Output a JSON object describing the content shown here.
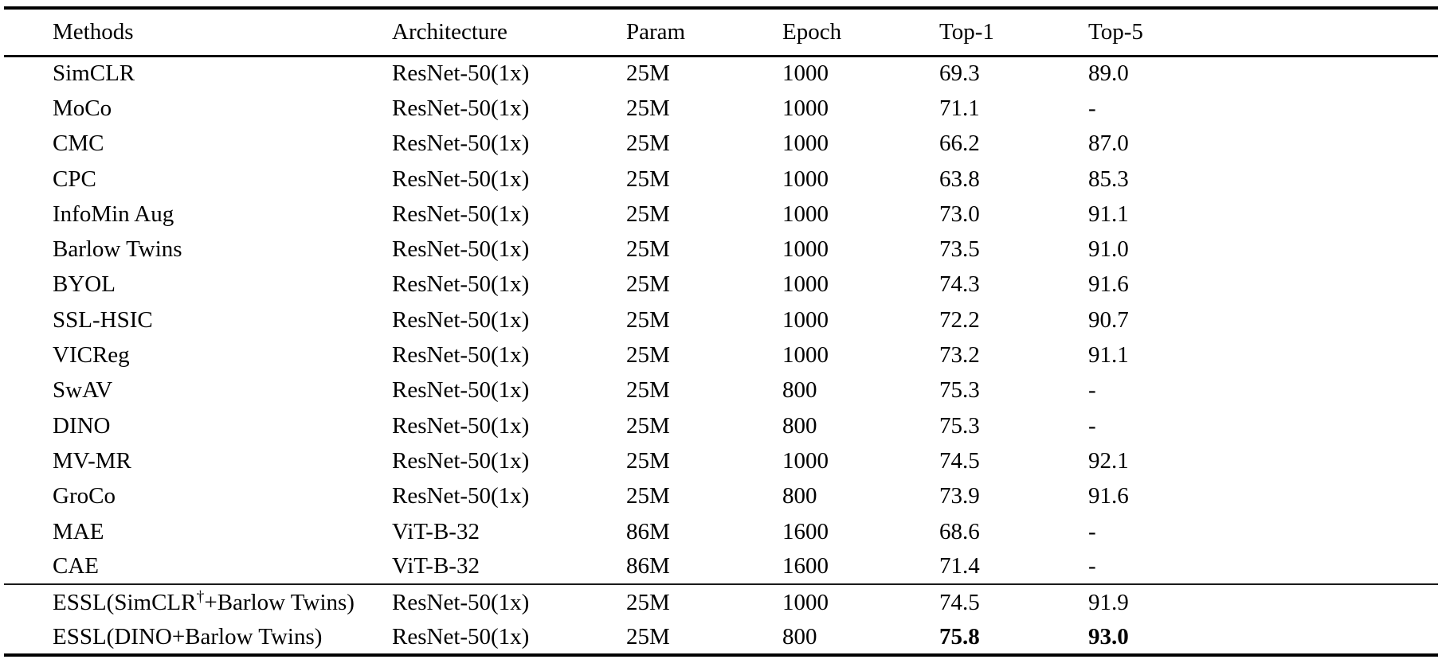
{
  "figure": {
    "kind": "paper-results-table",
    "colors": {
      "text": "#000000",
      "background": "#ffffff",
      "rule": "#000000"
    }
  },
  "table": {
    "columns": [
      {
        "id": "method",
        "label": "Methods"
      },
      {
        "id": "architecture",
        "label": "Architecture"
      },
      {
        "id": "param",
        "label": "Param"
      },
      {
        "id": "epoch",
        "label": "Epoch"
      },
      {
        "id": "top1",
        "label": "Top-1"
      },
      {
        "id": "top5",
        "label": "Top-5"
      }
    ],
    "rows": [
      {
        "method": "SimCLR",
        "architecture": "ResNet-50(1x)",
        "param": "25M",
        "epoch": "1000",
        "top1": "69.3",
        "top5": "89.0",
        "top1_bold": false,
        "top5_bold": false
      },
      {
        "method": "MoCo",
        "architecture": "ResNet-50(1x)",
        "param": "25M",
        "epoch": "1000",
        "top1": "71.1",
        "top5": "-",
        "top1_bold": false,
        "top5_bold": false
      },
      {
        "method": "CMC",
        "architecture": "ResNet-50(1x)",
        "param": "25M",
        "epoch": "1000",
        "top1": "66.2",
        "top5": "87.0",
        "top1_bold": false,
        "top5_bold": false
      },
      {
        "method": "CPC",
        "architecture": "ResNet-50(1x)",
        "param": "25M",
        "epoch": "1000",
        "top1": "63.8",
        "top5": "85.3",
        "top1_bold": false,
        "top5_bold": false
      },
      {
        "method": "InfoMin Aug",
        "architecture": "ResNet-50(1x)",
        "param": "25M",
        "epoch": "1000",
        "top1": "73.0",
        "top5": "91.1",
        "top1_bold": false,
        "top5_bold": false
      },
      {
        "method": "Barlow Twins",
        "architecture": "ResNet-50(1x)",
        "param": "25M",
        "epoch": "1000",
        "top1": "73.5",
        "top5": "91.0",
        "top1_bold": false,
        "top5_bold": false
      },
      {
        "method": "BYOL",
        "architecture": "ResNet-50(1x)",
        "param": "25M",
        "epoch": "1000",
        "top1": "74.3",
        "top5": "91.6",
        "top1_bold": false,
        "top5_bold": false
      },
      {
        "method": "SSL-HSIC",
        "architecture": "ResNet-50(1x)",
        "param": "25M",
        "epoch": "1000",
        "top1": "72.2",
        "top5": "90.7",
        "top1_bold": false,
        "top5_bold": false
      },
      {
        "method": "VICReg",
        "architecture": "ResNet-50(1x)",
        "param": "25M",
        "epoch": "1000",
        "top1": "73.2",
        "top5": "91.1",
        "top1_bold": false,
        "top5_bold": false
      },
      {
        "method": "SwAV",
        "architecture": "ResNet-50(1x)",
        "param": "25M",
        "epoch": "800",
        "top1": "75.3",
        "top5": "-",
        "top1_bold": false,
        "top5_bold": false
      },
      {
        "method": "DINO",
        "architecture": "ResNet-50(1x)",
        "param": "25M",
        "epoch": "800",
        "top1": "75.3",
        "top5": "-",
        "top1_bold": false,
        "top5_bold": false
      },
      {
        "method": "MV-MR",
        "architecture": "ResNet-50(1x)",
        "param": "25M",
        "epoch": "1000",
        "top1": "74.5",
        "top5": "92.1",
        "top1_bold": false,
        "top5_bold": false
      },
      {
        "method": "GroCo",
        "architecture": "ResNet-50(1x)",
        "param": "25M",
        "epoch": "800",
        "top1": "73.9",
        "top5": "91.6",
        "top1_bold": false,
        "top5_bold": false
      },
      {
        "method": "MAE",
        "architecture": "ViT-B-32",
        "param": "86M",
        "epoch": "1600",
        "top1": "68.6",
        "top5": "-",
        "top1_bold": false,
        "top5_bold": false
      },
      {
        "method": "CAE",
        "architecture": "ViT-B-32",
        "param": "86M",
        "epoch": "1600",
        "top1": "71.4",
        "top5": "-",
        "top1_bold": false,
        "top5_bold": false
      }
    ],
    "highlight_rows": [
      {
        "method": "ESSL(SimCLR†+Barlow Twins)",
        "architecture": "ResNet-50(1x)",
        "param": "25M",
        "epoch": "1000",
        "top1": "74.5",
        "top5": "91.9",
        "top1_bold": false,
        "top5_bold": false
      },
      {
        "method": "ESSL(DINO+Barlow Twins)",
        "architecture": "ResNet-50(1x)",
        "param": "25M",
        "epoch": "800",
        "top1": "75.8",
        "top5": "93.0",
        "top1_bold": true,
        "top5_bold": true
      }
    ]
  }
}
